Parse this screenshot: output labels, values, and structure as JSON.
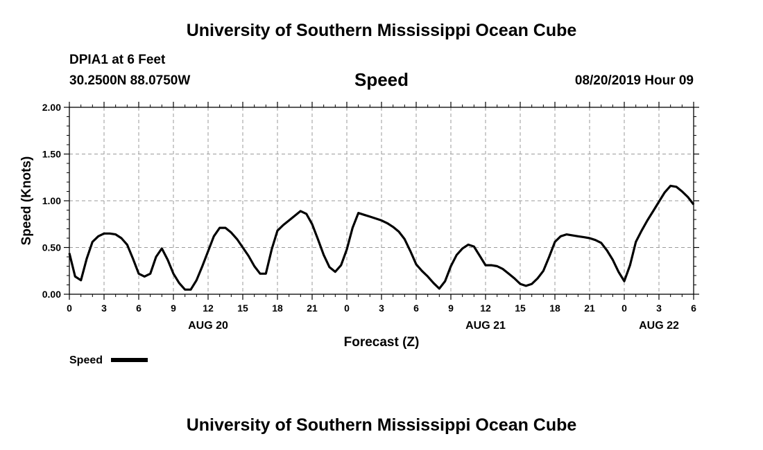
{
  "header": {
    "title": "University of Southern Mississippi Ocean Cube",
    "station": "DPIA1 at 6 Feet",
    "coordinates": "30.2500N 88.0750W",
    "variable": "Speed",
    "datetime": "08/20/2019 Hour 09"
  },
  "footer": {
    "title": "University of Southern Mississippi Ocean Cube"
  },
  "chart_data": {
    "type": "line",
    "xlabel": "Forecast (Z)",
    "ylabel": "Speed (Knots)",
    "ylim": [
      0,
      2.0
    ],
    "xlim_hours": [
      0,
      54
    ],
    "y_ticks": [
      "0.00",
      "0.50",
      "1.00",
      "1.50",
      "2.00"
    ],
    "y_tick_values": [
      0,
      0.5,
      1.0,
      1.5,
      2.0
    ],
    "x_tick_labels": [
      "0",
      "3",
      "6",
      "9",
      "12",
      "15",
      "18",
      "21",
      "0",
      "3",
      "6",
      "9",
      "12",
      "15",
      "18",
      "21",
      "0",
      "3",
      "6"
    ],
    "day_labels": [
      {
        "label": "AUG 20",
        "at_hour": 12
      },
      {
        "label": "AUG 21",
        "at_hour": 36
      },
      {
        "label": "AUG 22",
        "at_hour": 51
      }
    ],
    "grid": true,
    "legend": {
      "position": "bottom-left",
      "label": "Speed"
    },
    "series": [
      {
        "name": "Speed",
        "color": "#000000",
        "x": [
          0,
          0.5,
          1,
          1.5,
          2,
          2.5,
          3,
          3.5,
          4,
          4.5,
          5,
          5.5,
          6,
          6.5,
          7,
          7.5,
          8,
          8.5,
          9,
          9.5,
          10,
          10.5,
          11,
          11.5,
          12,
          12.5,
          13,
          13.5,
          14,
          14.5,
          15,
          15.5,
          16,
          16.5,
          17,
          17.5,
          18,
          18.5,
          19,
          19.5,
          20,
          20.5,
          21,
          21.5,
          22,
          22.5,
          23,
          23.5,
          24,
          24.5,
          25,
          25.5,
          26,
          26.5,
          27,
          27.5,
          28,
          28.5,
          29,
          29.5,
          30,
          30.5,
          31,
          31.5,
          32,
          32.5,
          33,
          33.5,
          34,
          34.5,
          35,
          35.5,
          36,
          36.5,
          37,
          37.5,
          38,
          38.5,
          39,
          39.5,
          40,
          40.5,
          41,
          41.5,
          42,
          42.5,
          43,
          43.5,
          44,
          44.5,
          45,
          45.5,
          46,
          46.5,
          47,
          47.5,
          48,
          48.5,
          49,
          49.5,
          50,
          50.5,
          51,
          51.5,
          52,
          52.5,
          53,
          53.5,
          54
        ],
        "values": [
          0.44,
          0.19,
          0.15,
          0.38,
          0.56,
          0.62,
          0.65,
          0.65,
          0.64,
          0.6,
          0.53,
          0.38,
          0.22,
          0.19,
          0.22,
          0.4,
          0.49,
          0.37,
          0.22,
          0.12,
          0.05,
          0.05,
          0.15,
          0.3,
          0.46,
          0.62,
          0.71,
          0.71,
          0.66,
          0.59,
          0.5,
          0.41,
          0.3,
          0.22,
          0.22,
          0.48,
          0.68,
          0.74,
          0.79,
          0.84,
          0.89,
          0.86,
          0.75,
          0.59,
          0.42,
          0.29,
          0.24,
          0.31,
          0.48,
          0.71,
          0.87,
          0.85,
          0.83,
          0.81,
          0.79,
          0.76,
          0.72,
          0.67,
          0.59,
          0.46,
          0.32,
          0.25,
          0.19,
          0.12,
          0.06,
          0.14,
          0.3,
          0.42,
          0.49,
          0.53,
          0.51,
          0.41,
          0.31,
          0.31,
          0.3,
          0.27,
          0.22,
          0.17,
          0.11,
          0.09,
          0.11,
          0.17,
          0.25,
          0.4,
          0.56,
          0.62,
          0.64,
          0.63,
          0.62,
          0.61,
          0.6,
          0.58,
          0.55,
          0.47,
          0.37,
          0.24,
          0.14,
          0.31,
          0.56,
          0.68,
          0.79,
          0.89,
          0.99,
          1.09,
          1.16,
          1.15,
          1.1,
          1.04,
          0.96
        ]
      }
    ]
  }
}
